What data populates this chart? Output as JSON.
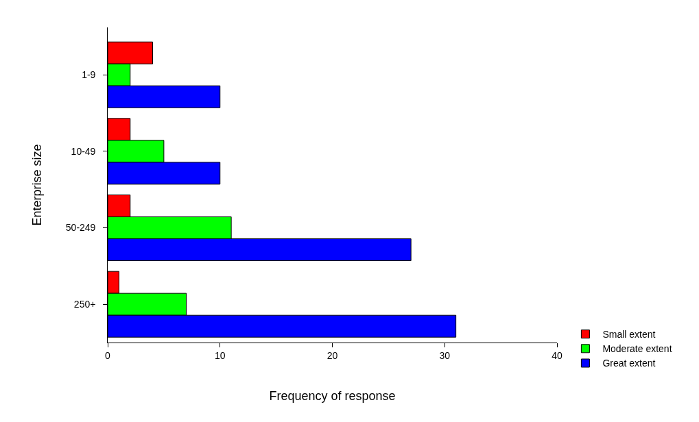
{
  "chart_data": {
    "type": "bar",
    "orientation": "horizontal",
    "xlabel": "Frequency of response",
    "ylabel": "Enterprise size",
    "categories": [
      "1-9",
      "10-49",
      "50-249",
      "250+"
    ],
    "series": [
      {
        "name": "Small extent",
        "color": "#ff0000",
        "values": [
          4,
          2,
          2,
          1
        ]
      },
      {
        "name": "Moderate extent",
        "color": "#00ff00",
        "values": [
          2,
          5,
          11,
          7
        ]
      },
      {
        "name": "Great extent",
        "color": "#0000ff",
        "values": [
          10,
          10,
          27,
          31
        ]
      }
    ],
    "xlim": [
      0,
      40
    ],
    "xticks": [
      0,
      10,
      20,
      30,
      40
    ],
    "grid": false,
    "legend": "bottom right"
  }
}
